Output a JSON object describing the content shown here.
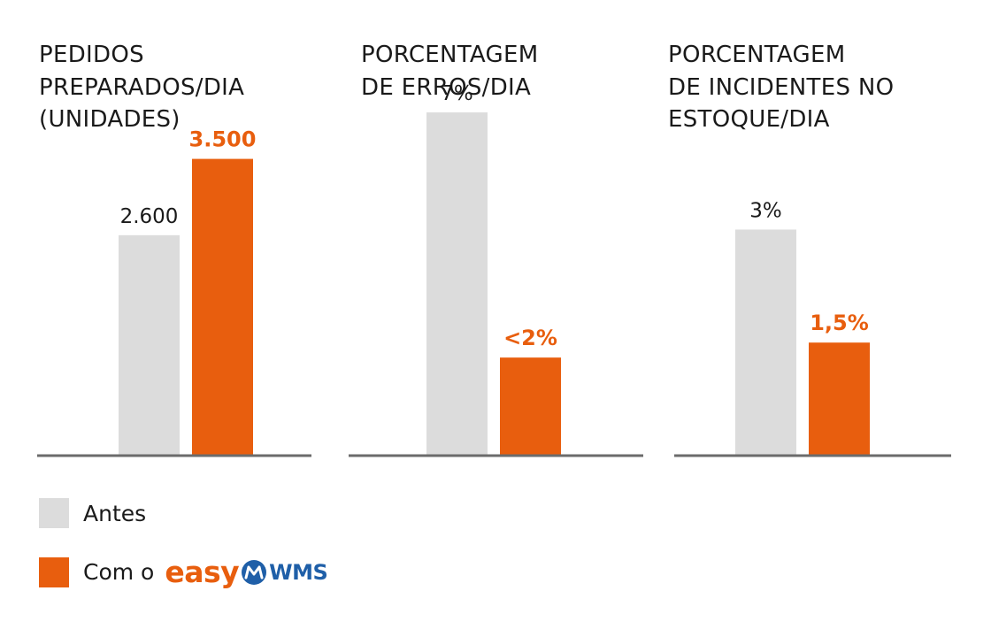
{
  "colors": {
    "antes": "#dcdcdc",
    "com": "#e85e0e",
    "axis": "#6b6b6b",
    "text": "#1a1a1a",
    "brand_blue": "#1f5fa8"
  },
  "legend": {
    "antes_label": "Antes",
    "com_label": "Com o",
    "brand_easy": "easy",
    "brand_wms": "WMS",
    "brand_icon": "easywms-logo-icon"
  },
  "chart_data": [
    {
      "type": "bar",
      "title_lines": [
        "PEDIDOS",
        "PREPARADOS/DIA",
        "(UNIDADES)"
      ],
      "categories": [
        "Antes",
        "Com o easyWMS"
      ],
      "values": [
        2600,
        3500
      ],
      "value_labels": [
        "2.600",
        "3.500"
      ],
      "ylim": [
        0,
        4800
      ]
    },
    {
      "type": "bar",
      "title_lines": [
        "PORCENTAGEM",
        "DE ERROS/DIA"
      ],
      "categories": [
        "Antes",
        "Com o easyWMS"
      ],
      "values": [
        7,
        2
      ],
      "value_labels": [
        "7%",
        "<2%"
      ],
      "ylim": [
        0,
        8.3
      ]
    },
    {
      "type": "bar",
      "title_lines": [
        "PORCENTAGEM",
        "DE INCIDENTES NO",
        "ESTOQUE/DIA"
      ],
      "categories": [
        "Antes",
        "Com o easyWMS"
      ],
      "values": [
        3,
        1.5
      ],
      "value_labels": [
        "3%",
        "1,5%"
      ],
      "ylim": [
        0,
        5.4
      ]
    }
  ]
}
